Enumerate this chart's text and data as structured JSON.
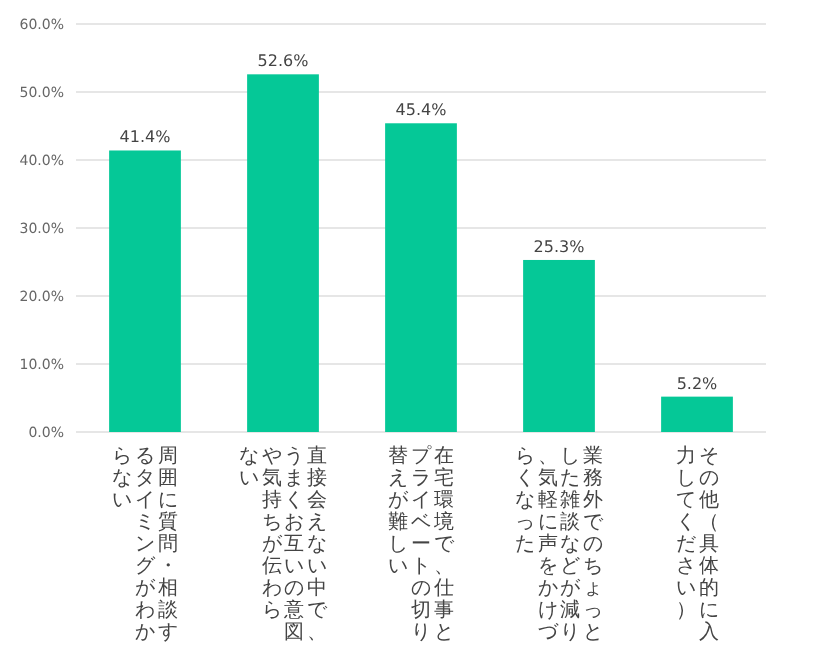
{
  "chart_data": {
    "type": "bar",
    "categories": [
      "周囲に質問・相談するタイミングがわからない",
      "直接会えない中で、うまくお互いの意図や気持ちが伝わらない",
      "在宅環境で、仕事とプライベートの切り替えが難しい",
      "業務外でのちょっとした雑談などが減り、気軽に声をかけづらくなった",
      "その他（具体的に入力してください）"
    ],
    "values": [
      41.4,
      52.6,
      45.4,
      25.3,
      5.2
    ],
    "value_labels": [
      "41.4%",
      "52.6%",
      "45.4%",
      "25.3%",
      "5.2%"
    ],
    "color": "#05c897",
    "ylim": [
      0,
      60
    ],
    "yticks": [
      {
        "value": 0,
        "label": "0.0%"
      },
      {
        "value": 10,
        "label": "10.0%"
      },
      {
        "value": 20,
        "label": "20.0%"
      },
      {
        "value": 30,
        "label": "30.0%"
      },
      {
        "value": 40,
        "label": "40.0%"
      },
      {
        "value": 50,
        "label": "50.0%"
      },
      {
        "value": 60,
        "label": "60.0%"
      }
    ],
    "grid": "y"
  }
}
